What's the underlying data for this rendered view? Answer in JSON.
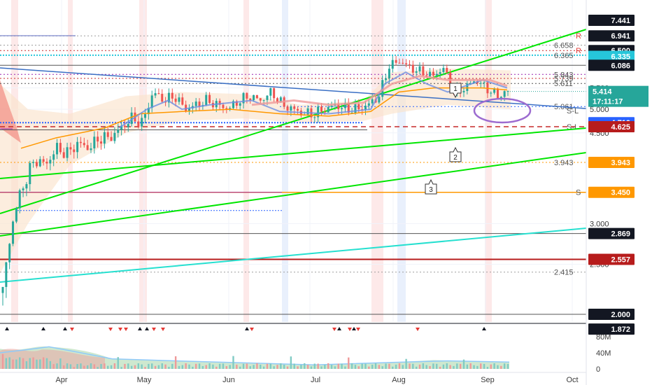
{
  "chart_data": {
    "type": "candlestick",
    "title": "",
    "y_scale": "log",
    "ylim": [
      1.85,
      8.0
    ],
    "x_months": [
      "Apr",
      "May",
      "Jun",
      "Jul",
      "Aug",
      "Sep",
      "Oct"
    ],
    "x_range": [
      "2021-03-09",
      "2021-10-08"
    ],
    "last_price": "5.414",
    "countdown": "17:11:17",
    "price_tags": [
      {
        "label": "7.441",
        "value": 7.441,
        "color": "#131722",
        "text": "#ffffff"
      },
      {
        "label": "6.941",
        "value": 6.941,
        "color": "#131722",
        "text": "#ffffff"
      },
      {
        "label": "6.500",
        "value": 6.5,
        "color": "#131722",
        "text": "#ffffff"
      },
      {
        "label": "6.335",
        "value": 6.335,
        "color": "#26c6da",
        "text": "#ffffff"
      },
      {
        "label": "6.086",
        "value": 6.086,
        "color": "#131722",
        "text": "#ffffff"
      },
      {
        "label": "4.710",
        "value": 4.71,
        "color": "#2962ff",
        "text": "#ffffff"
      },
      {
        "label": "4.625",
        "value": 4.625,
        "color": "#b71c1c",
        "text": "#ffffff"
      },
      {
        "label": "3.943",
        "value": 3.943,
        "color": "#ff9800",
        "text": "#ffffff"
      },
      {
        "label": "3.450",
        "value": 3.45,
        "color": "#ff9800",
        "text": "#ffffff"
      },
      {
        "label": "2.869",
        "value": 2.869,
        "color": "#131722",
        "text": "#ffffff"
      },
      {
        "label": "2.557",
        "value": 2.557,
        "color": "#b71c1c",
        "text": "#ffffff"
      },
      {
        "label": "2.000",
        "value": 2.0,
        "color": "#131722",
        "text": "#ffffff"
      },
      {
        "label": "1.872",
        "value": 1.872,
        "color": "#131722",
        "text": "#ffffff"
      }
    ],
    "axis_ticks": [
      {
        "label": "5.500",
        "value": 5.5
      },
      {
        "label": "5.000",
        "value": 5.0
      },
      {
        "label": "4.500",
        "value": 4.5
      },
      {
        "label": "3.000",
        "value": 3.0
      },
      {
        "label": "2.500",
        "value": 2.5
      }
    ],
    "level_labels": [
      {
        "label": "6.658",
        "value": 6.658
      },
      {
        "label": "6.365",
        "value": 6.365
      },
      {
        "label": "5.843",
        "value": 5.843
      },
      {
        "label": "5.739",
        "value": 5.739
      },
      {
        "label": "5.611",
        "value": 5.611
      },
      {
        "label": "5.061",
        "value": 5.061
      },
      {
        "label": "S-L",
        "value": 4.97
      },
      {
        "label": "S-L",
        "value": 4.625
      },
      {
        "label": "3.943",
        "value": 3.943
      },
      {
        "label": "S",
        "value": 3.45
      },
      {
        "label": "2.415",
        "value": 2.415
      },
      {
        "label": "R",
        "value": 6.941
      },
      {
        "label": "R",
        "value": 6.5
      }
    ],
    "callouts": [
      "1",
      "2",
      "3"
    ],
    "volume_axis": [
      "80M",
      "40M",
      "0"
    ],
    "series": [
      {
        "name": "",
        "type": "candles",
        "closes": [
          2.2,
          3.1,
          3.6,
          4.0,
          3.9,
          4.2,
          4.1,
          4.3,
          4.2,
          4.4,
          4.4,
          4.6,
          4.8,
          4.7,
          5.4,
          5.2,
          5.3,
          5.0,
          5.1,
          5.2,
          5.1,
          5.0,
          5.2,
          5.3,
          5.2,
          5.4,
          5.1,
          5.0,
          4.9,
          4.9,
          5.0,
          5.1,
          5.0,
          5.0,
          5.1,
          5.3,
          6.1,
          6.2,
          6.0,
          5.9,
          5.8,
          6.0,
          5.4,
          5.5,
          5.7,
          5.5,
          5.3,
          5.41
        ]
      }
    ]
  }
}
